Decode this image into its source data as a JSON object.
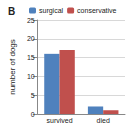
{
  "chart_data": {
    "type": "bar",
    "title": "B",
    "y_label": "number of dogs",
    "categories": [
      "survived",
      "died"
    ],
    "series": [
      {
        "name": "surgical",
        "color": "#4f81bd",
        "values": [
          16,
          2
        ]
      },
      {
        "name": "conservative",
        "color": "#c0504d",
        "values": [
          17,
          1
        ]
      }
    ],
    "ylim": [
      0,
      25
    ],
    "yticks": [
      0,
      5,
      10,
      15,
      20,
      25
    ],
    "grid": true,
    "legend": "top"
  }
}
